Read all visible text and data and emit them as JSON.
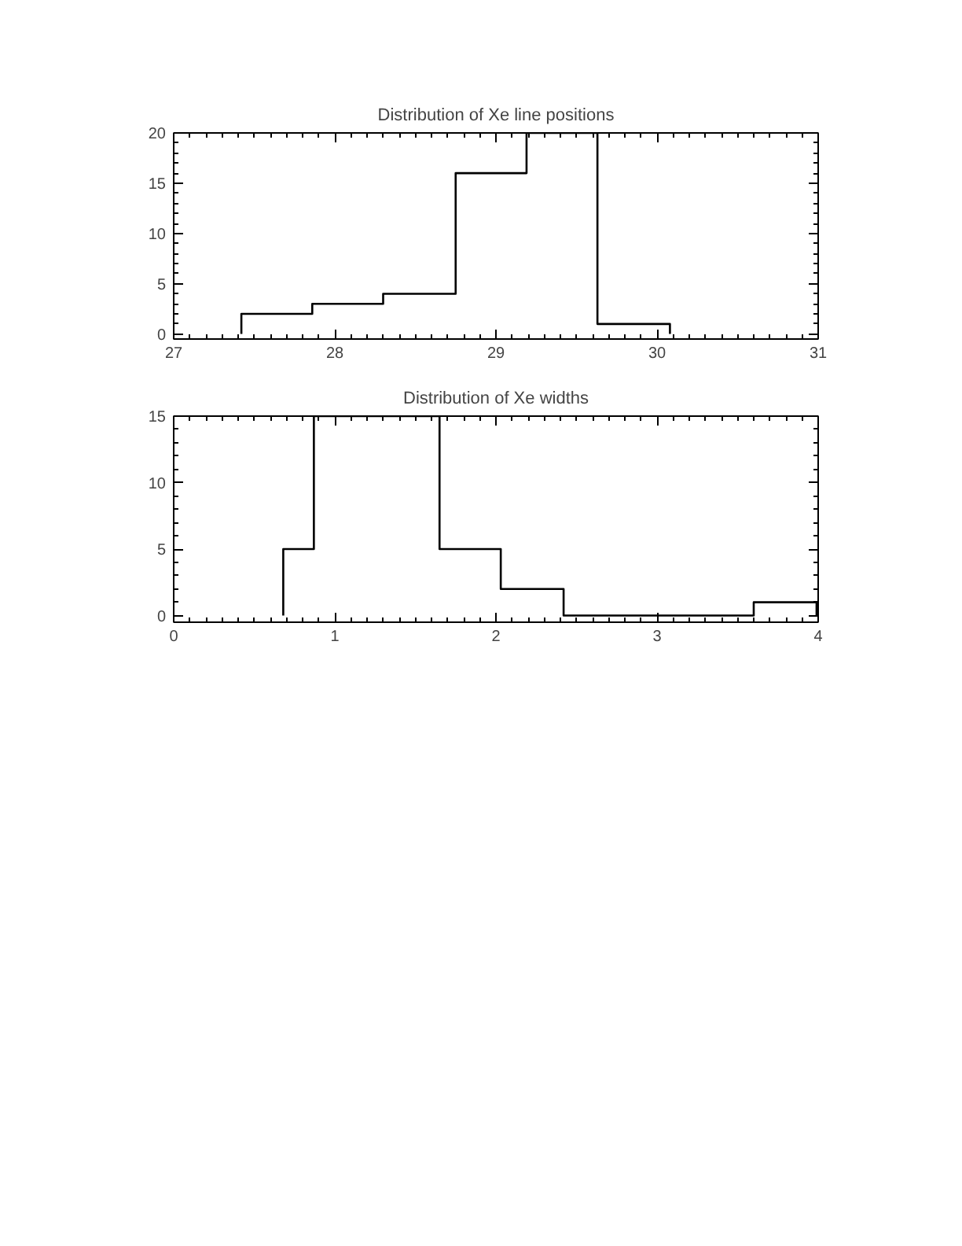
{
  "chart_data": [
    {
      "type": "histogram",
      "title": "Distribution of Xe line positions",
      "bins": [
        27.42,
        27.86,
        28.3,
        28.75,
        29.19,
        29.63,
        30.08
      ],
      "values": [
        2,
        3,
        4,
        16,
        20,
        1
      ],
      "color": "#000000",
      "xlim": [
        27,
        31
      ],
      "xticks": [
        27,
        28,
        29,
        30,
        31
      ],
      "ylim": [
        -0.5,
        20
      ],
      "yticks": [
        0,
        5,
        10,
        15,
        20
      ],
      "grid": false
    },
    {
      "type": "histogram",
      "title": "Distribution of Xe widths",
      "bins": [
        0.68,
        0.87,
        1.26,
        1.65,
        2.03,
        2.42,
        2.81,
        3.2,
        3.6,
        3.99
      ],
      "values": [
        5,
        15,
        15,
        5,
        2,
        0,
        0,
        0,
        1
      ],
      "color": "#000000",
      "xlim": [
        0,
        4
      ],
      "xticks": [
        0,
        1,
        2,
        3,
        4
      ],
      "ylim": [
        -0.5,
        15
      ],
      "yticks": [
        0,
        5,
        10,
        15
      ],
      "grid": false
    }
  ]
}
